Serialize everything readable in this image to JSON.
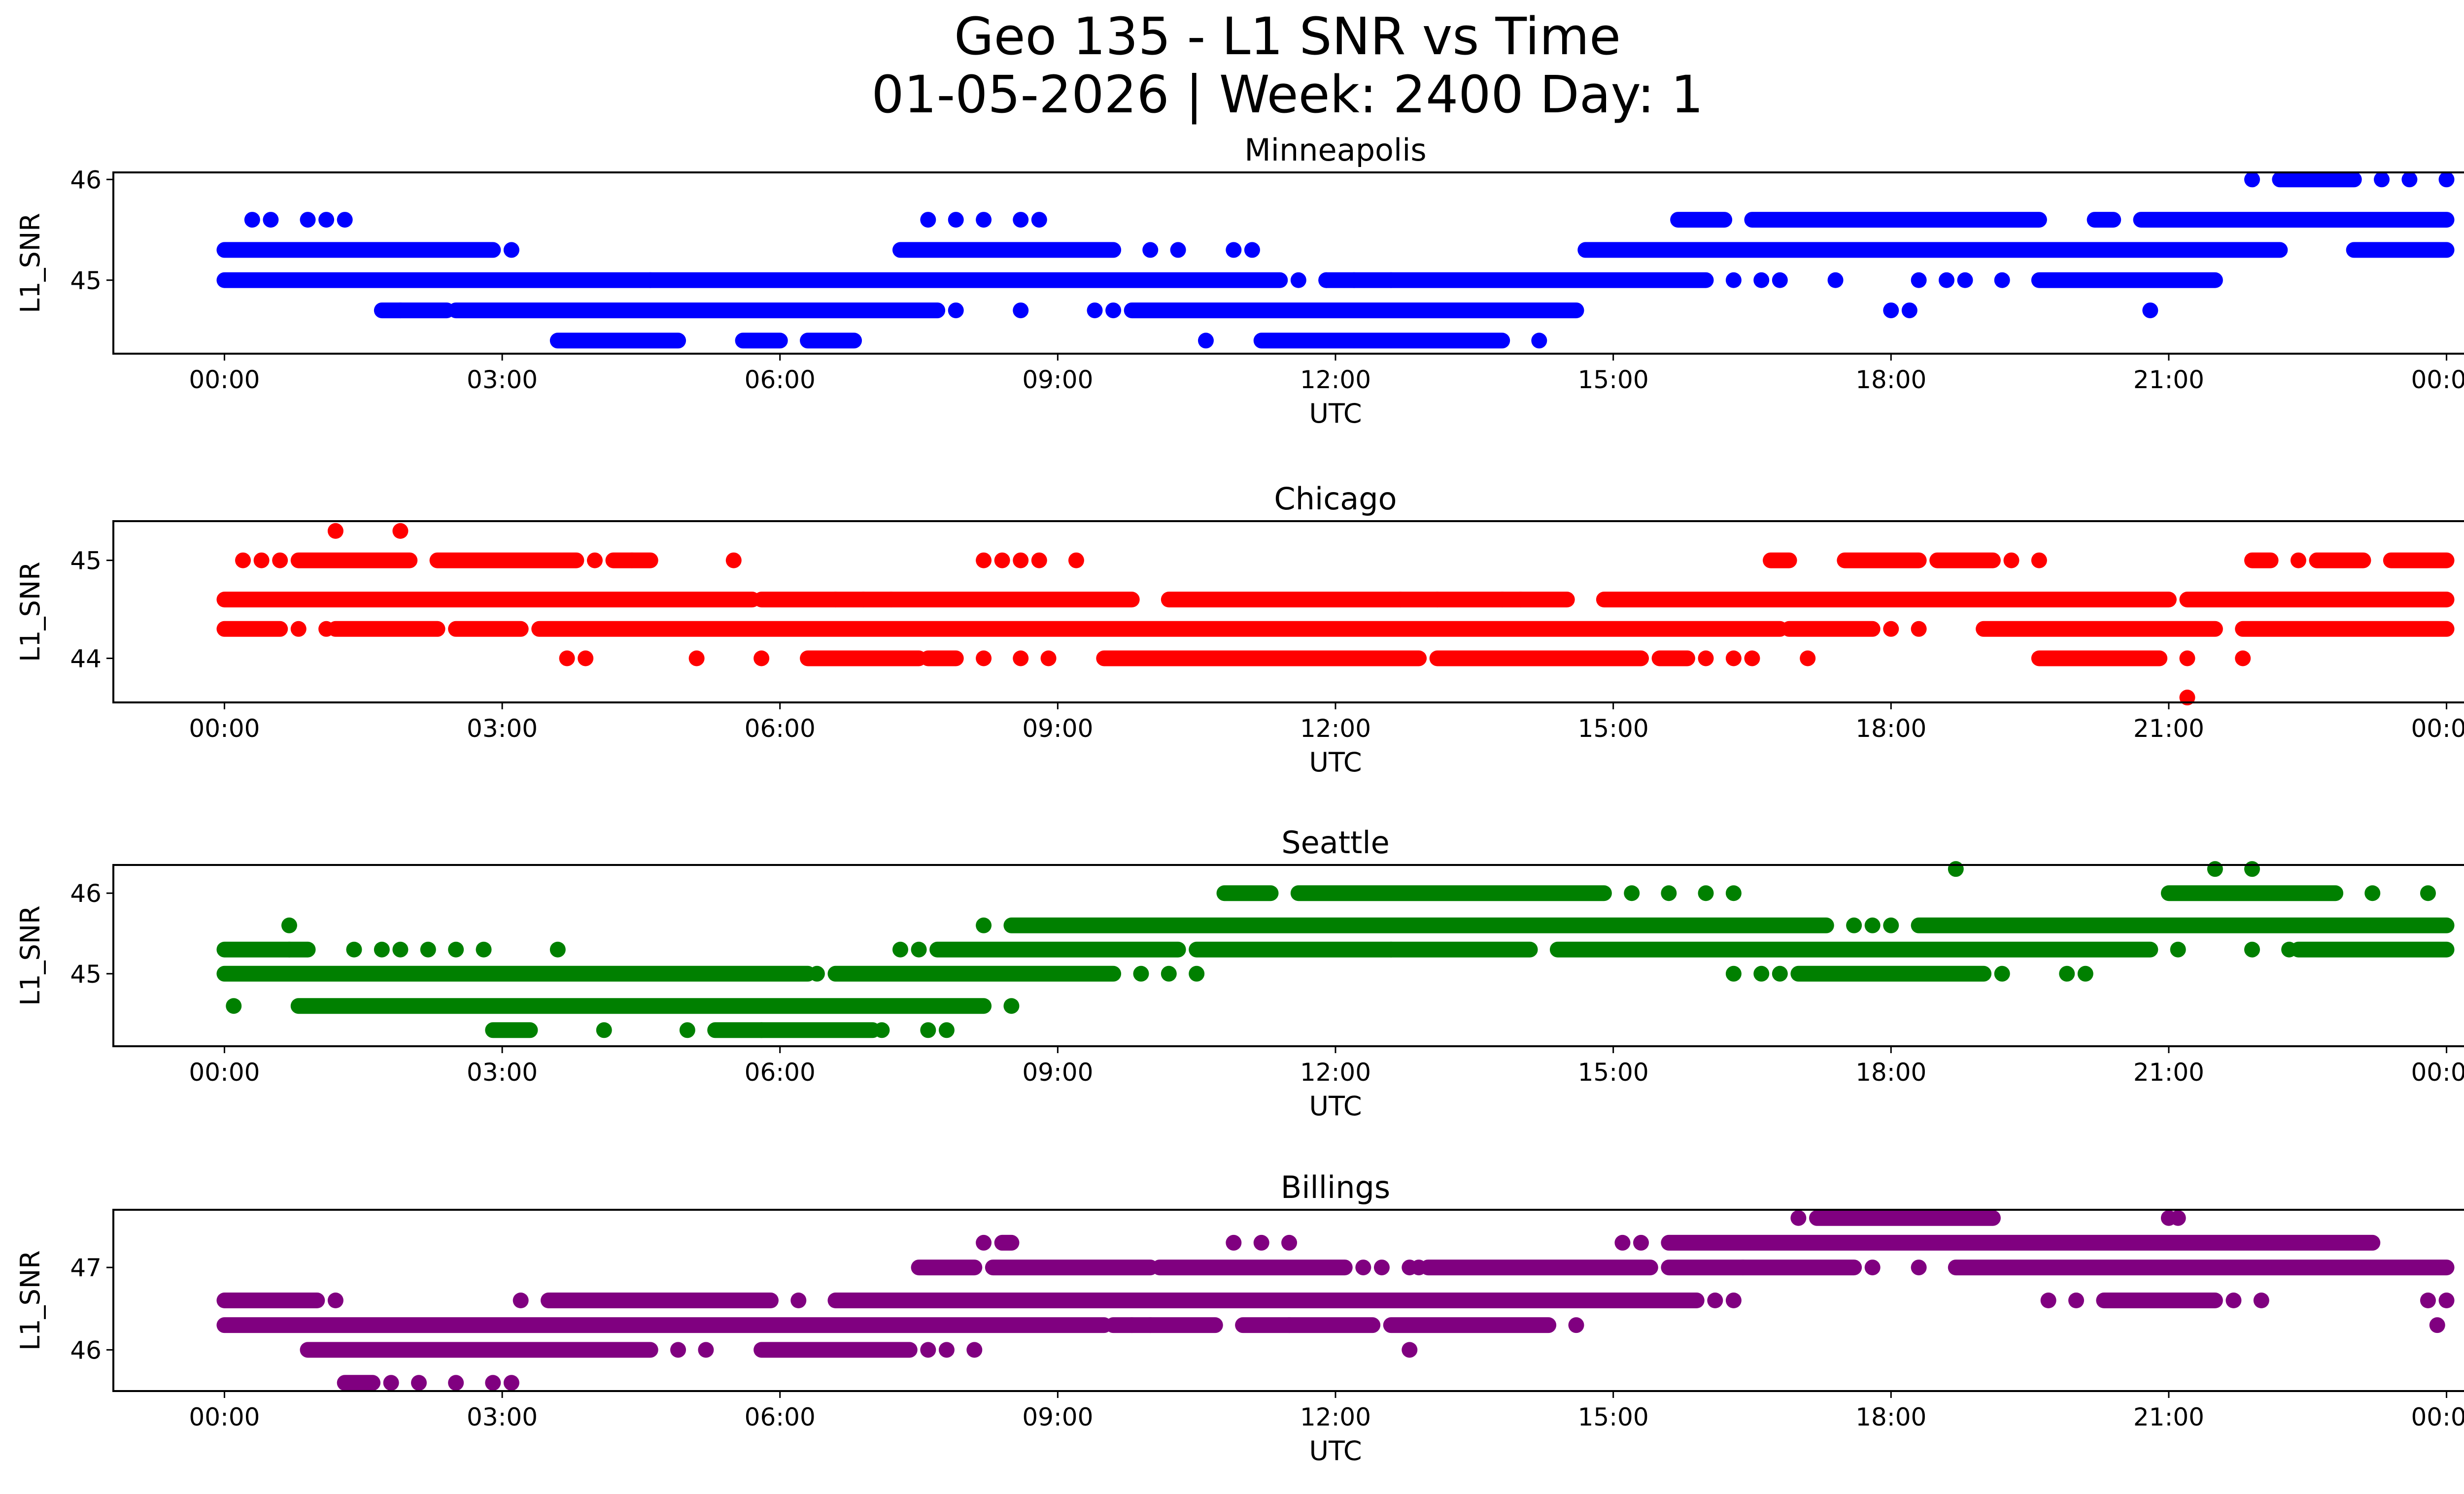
{
  "figure": {
    "title_line1": "Geo 135 - L1 SNR vs Time",
    "title_line2": "01-05-2026 | Week: 2400 Day: 1"
  },
  "chart_data": [
    {
      "type": "scatter",
      "title": "Minneapolis",
      "xlabel": "UTC",
      "ylabel": "L1_SNR",
      "color": "#0000ff",
      "xlim_hours": [
        -1.2,
        25.2
      ],
      "ylim": [
        44.27,
        46.07
      ],
      "xticks": [
        "00:00",
        "03:00",
        "06:00",
        "09:00",
        "12:00",
        "15:00",
        "18:00",
        "21:00",
        "00:00"
      ],
      "yticks": [
        {
          "value": 45,
          "label": "45"
        },
        {
          "value": 46,
          "label": "46"
        }
      ],
      "segments": [
        {
          "y": 45.0,
          "ranges": [
            [
              0,
              4.6
            ],
            [
              4.6,
              11.4
            ],
            [
              11.9,
              16.0
            ],
            [
              19.6,
              21.5
            ]
          ],
          "points": [
            11.6,
            11.9,
            12.2,
            12.6,
            16.3,
            16.6,
            16.8,
            17.4,
            18.3,
            18.6,
            18.8,
            19.2
          ]
        },
        {
          "y": 45.3,
          "ranges": [
            [
              0,
              2.9
            ],
            [
              7.3,
              9.6
            ],
            [
              14.7,
              22.2
            ],
            [
              23.0,
              24.0
            ]
          ],
          "points": [
            3.1,
            10.0,
            10.3,
            10.9,
            11.1
          ]
        },
        {
          "y": 45.6,
          "ranges": [
            [
              15.7,
              16.2
            ],
            [
              16.5,
              19.6
            ],
            [
              20.2,
              20.4
            ],
            [
              20.7,
              24.0
            ]
          ],
          "points": [
            0.3,
            0.5,
            0.9,
            1.1,
            1.3,
            7.6,
            7.9,
            8.2,
            8.6,
            8.8
          ]
        },
        {
          "y": 44.7,
          "ranges": [
            [
              1.7,
              2.4
            ],
            [
              2.5,
              7.7
            ],
            [
              9.8,
              14.6
            ]
          ],
          "points": [
            1.9,
            7.9,
            8.6,
            9.4,
            9.6,
            18.0,
            18.2,
            20.8
          ]
        },
        {
          "y": 44.4,
          "ranges": [
            [
              3.6,
              4.9
            ],
            [
              5.6,
              6.0
            ],
            [
              6.3,
              6.8
            ],
            [
              11.2,
              13.8
            ]
          ],
          "points": [
            10.6,
            14.2
          ]
        },
        {
          "y": 46.0,
          "ranges": [
            [
              22.2,
              23.0
            ]
          ],
          "points": [
            21.9,
            23.3,
            23.6,
            24.0
          ]
        }
      ]
    },
    {
      "type": "scatter",
      "title": "Chicago",
      "xlabel": "UTC",
      "ylabel": "L1_SNR",
      "color": "#ff0000",
      "xlim_hours": [
        -1.2,
        25.2
      ],
      "ylim": [
        43.55,
        45.4
      ],
      "xticks": [
        "00:00",
        "03:00",
        "06:00",
        "09:00",
        "12:00",
        "15:00",
        "18:00",
        "21:00",
        "00:00"
      ],
      "yticks": [
        {
          "value": 44,
          "label": "44"
        },
        {
          "value": 45,
          "label": "45"
        }
      ],
      "segments": [
        {
          "y": 44.6,
          "ranges": [
            [
              0,
              5.7
            ],
            [
              5.8,
              9.8
            ],
            [
              10.2,
              14.5
            ],
            [
              14.9,
              21.0
            ],
            [
              21.2,
              24.0
            ]
          ],
          "points": [
            6.6,
            6.9,
            7.2,
            12.7,
            13.1,
            13.8,
            14.0
          ]
        },
        {
          "y": 44.3,
          "ranges": [
            [
              0,
              0.6
            ],
            [
              1.2,
              2.3
            ],
            [
              2.5,
              3.2
            ],
            [
              3.4,
              16.8
            ],
            [
              16.9,
              17.8
            ],
            [
              19.0,
              21.5
            ],
            [
              21.8,
              24.0
            ]
          ],
          "points": [
            0.8,
            1.1,
            18.0,
            18.3
          ]
        },
        {
          "y": 45.0,
          "ranges": [
            [
              0.8,
              2.0
            ],
            [
              2.3,
              3.8
            ],
            [
              4.2,
              4.6
            ],
            [
              16.7,
              16.9
            ],
            [
              17.5,
              18.3
            ],
            [
              18.5,
              19.1
            ],
            [
              21.9,
              22.1
            ],
            [
              22.6,
              23.1
            ],
            [
              23.4,
              24.0
            ]
          ],
          "points": [
            0.2,
            0.4,
            0.6,
            4.0,
            4.4,
            5.5,
            8.2,
            8.4,
            8.6,
            8.8,
            9.2,
            19.3,
            19.6,
            22.4
          ]
        },
        {
          "y": 44.0,
          "ranges": [
            [
              6.3,
              7.5
            ],
            [
              7.6,
              7.9
            ],
            [
              9.5,
              12.9
            ],
            [
              13.1,
              15.3
            ],
            [
              15.5,
              15.8
            ],
            [
              19.6,
              20.9
            ]
          ],
          "points": [
            3.7,
            3.9,
            5.1,
            5.8,
            8.2,
            8.6,
            8.9,
            16.0,
            16.3,
            16.5,
            17.1,
            21.2,
            21.8
          ]
        },
        {
          "y": 45.3,
          "ranges": [],
          "points": [
            1.2,
            1.9
          ]
        },
        {
          "y": 43.6,
          "ranges": [],
          "points": [
            21.2
          ]
        }
      ]
    },
    {
      "type": "scatter",
      "title": "Seattle",
      "xlabel": "UTC",
      "ylabel": "L1_SNR",
      "color": "#008000",
      "xlim_hours": [
        -1.2,
        25.2
      ],
      "ylim": [
        44.1,
        46.35
      ],
      "xticks": [
        "00:00",
        "03:00",
        "06:00",
        "09:00",
        "12:00",
        "15:00",
        "18:00",
        "21:00",
        "00:00"
      ],
      "yticks": [
        {
          "value": 45,
          "label": "45"
        },
        {
          "value": 46,
          "label": "46"
        }
      ],
      "segments": [
        {
          "y": 45.0,
          "ranges": [
            [
              0,
              6.3
            ],
            [
              6.6,
              9.6
            ]
          ],
          "points": [
            6.4,
            9.9,
            10.2,
            10.5
          ]
        },
        {
          "y": 44.6,
          "ranges": [
            [
              0.8,
              8.2
            ]
          ],
          "points": [
            0.1,
            8.5
          ]
        },
        {
          "y": 45.3,
          "ranges": [
            [
              0,
              0.9
            ],
            [
              7.7,
              10.3
            ],
            [
              10.5,
              14.1
            ],
            [
              14.4,
              20.8
            ],
            [
              22.4,
              24.0
            ]
          ],
          "points": [
            0.7,
            1.4,
            1.7,
            1.9,
            2.2,
            2.5,
            2.8,
            3.6,
            7.3,
            7.5,
            12.6,
            21.1,
            21.9,
            22.3
          ]
        },
        {
          "y": 45.6,
          "ranges": [
            [
              8.5,
              17.3
            ],
            [
              18.3,
              24.0
            ]
          ],
          "points": [
            0.7,
            8.2,
            17.6,
            17.8,
            18.0
          ]
        },
        {
          "y": 46.0,
          "ranges": [
            [
              10.8,
              11.3
            ],
            [
              11.6,
              14.9
            ],
            [
              21.0,
              22.8
            ]
          ],
          "points": [
            15.2,
            15.6,
            16.0,
            16.3,
            23.2,
            23.8
          ]
        },
        {
          "y": 45.0,
          "ranges": [
            [
              17.0,
              19.0
            ]
          ],
          "points": [
            16.3,
            16.6,
            16.8,
            19.2,
            19.9,
            20.1
          ]
        },
        {
          "y": 44.3,
          "ranges": [
            [
              5.3,
              7.0
            ],
            [
              2.9,
              3.3
            ]
          ],
          "points": [
            4.1,
            5.0,
            5.8,
            7.1,
            7.6,
            7.8
          ]
        },
        {
          "y": 46.3,
          "ranges": [],
          "points": [
            18.7,
            21.5,
            21.9
          ]
        }
      ]
    },
    {
      "type": "scatter",
      "title": "Billings",
      "xlabel": "UTC",
      "ylabel": "L1_SNR",
      "color": "#800080",
      "xlim_hours": [
        -1.2,
        25.2
      ],
      "ylim": [
        45.5,
        47.7
      ],
      "xticks": [
        "00:00",
        "03:00",
        "06:00",
        "09:00",
        "12:00",
        "15:00",
        "18:00",
        "21:00",
        "00:00"
      ],
      "yticks": [
        {
          "value": 46,
          "label": "46"
        },
        {
          "value": 47,
          "label": "47"
        }
      ],
      "segments": [
        {
          "y": 46.3,
          "ranges": [
            [
              0,
              9.5
            ],
            [
              9.6,
              10.7
            ],
            [
              11.0,
              12.4
            ],
            [
              12.6,
              14.3
            ]
          ],
          "points": [
            9.8,
            10.0,
            11.5,
            14.6
          ]
        },
        {
          "y": 46.6,
          "ranges": [
            [
              0,
              1.0
            ],
            [
              3.5,
              5.9
            ],
            [
              6.6,
              15.9
            ],
            [
              20.3,
              21.5
            ]
          ],
          "points": [
            1.2,
            3.2,
            4.2,
            4.7,
            6.2,
            7.0,
            16.1,
            16.3,
            19.7,
            20.0,
            21.7,
            22.0,
            23.8,
            24.0
          ]
        },
        {
          "y": 46.0,
          "ranges": [
            [
              0.9,
              4.6
            ],
            [
              5.8,
              7.4
            ]
          ],
          "points": [
            4.9,
            5.2,
            7.6,
            7.8,
            8.1,
            12.8
          ]
        },
        {
          "y": 45.6,
          "ranges": [
            [
              1.3,
              1.6
            ]
          ],
          "points": [
            1.8,
            2.1,
            2.5,
            2.9,
            3.1
          ]
        },
        {
          "y": 47.0,
          "ranges": [
            [
              7.5,
              8.1
            ],
            [
              8.3,
              10.0
            ],
            [
              10.1,
              12.1
            ],
            [
              13.0,
              15.4
            ],
            [
              15.6,
              17.6
            ],
            [
              18.7,
              24.0
            ]
          ],
          "points": [
            12.3,
            12.5,
            12.8,
            12.9,
            16.4,
            17.8,
            18.3
          ]
        },
        {
          "y": 47.3,
          "ranges": [
            [
              15.6,
              23.2
            ],
            [
              8.4,
              8.5
            ]
          ],
          "points": [
            8.2,
            10.9,
            11.2,
            11.5,
            15.1,
            15.3
          ]
        },
        {
          "y": 47.6,
          "ranges": [
            [
              17.2,
              19.1
            ]
          ],
          "points": [
            17.0,
            21.0,
            21.1
          ]
        },
        {
          "y": 46.3,
          "ranges": [],
          "points": [
            23.9
          ]
        }
      ]
    }
  ]
}
